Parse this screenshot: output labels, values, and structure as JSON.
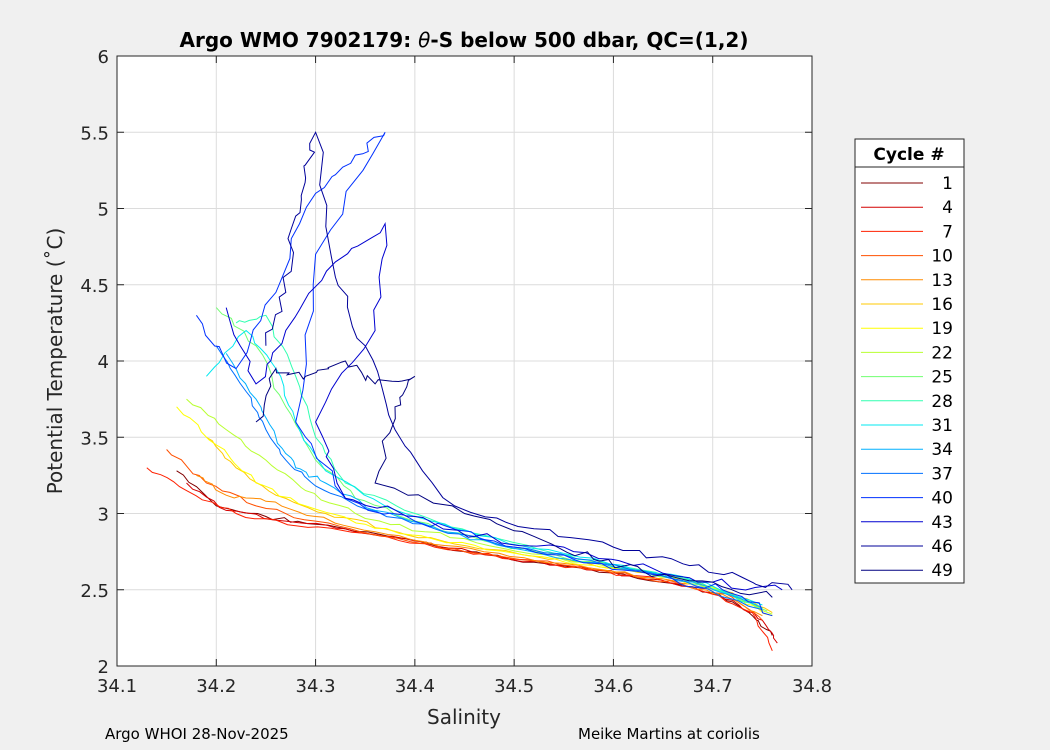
{
  "chart_data": {
    "type": "line",
    "title_prefix": "Argo WMO 7902179: ",
    "title_symbol": "θ",
    "title_suffix": "-S below 500 dbar,  QC=(1,2)",
    "xlabel": "Salinity",
    "ylabel": "Potential Temperature (˚C)",
    "xlim": [
      34.1,
      34.8
    ],
    "ylim": [
      2,
      6
    ],
    "xticks": [
      34.1,
      34.2,
      34.3,
      34.4,
      34.5,
      34.6,
      34.7,
      34.8
    ],
    "xtick_labels": [
      "34.1",
      "34.2",
      "34.3",
      "34.4",
      "34.5",
      "34.6",
      "34.7",
      "34.8"
    ],
    "yticks": [
      2,
      2.5,
      3,
      3.5,
      4,
      4.5,
      5,
      5.5,
      6
    ],
    "ytick_labels": [
      "2",
      "2.5",
      "3",
      "3.5",
      "4",
      "4.5",
      "5",
      "5.5",
      "6"
    ],
    "grid": true,
    "legend_title": "Cycle #",
    "legend_position": "right",
    "legend": [
      {
        "label": "1",
        "color": "#800000"
      },
      {
        "label": "4",
        "color": "#d40000"
      },
      {
        "label": "7",
        "color": "#ff2000"
      },
      {
        "label": "10",
        "color": "#ff5000"
      },
      {
        "label": "13",
        "color": "#ff8c00"
      },
      {
        "label": "16",
        "color": "#ffc800"
      },
      {
        "label": "19",
        "color": "#ffff00"
      },
      {
        "label": "22",
        "color": "#b8ff30"
      },
      {
        "label": "25",
        "color": "#70ff70"
      },
      {
        "label": "28",
        "color": "#30ffb0"
      },
      {
        "label": "31",
        "color": "#00e8f0"
      },
      {
        "label": "34",
        "color": "#00b0ff"
      },
      {
        "label": "37",
        "color": "#0070ff"
      },
      {
        "label": "40",
        "color": "#0030ff"
      },
      {
        "label": "43",
        "color": "#0000d0"
      },
      {
        "label": "46",
        "color": "#00009a"
      },
      {
        "label": "49",
        "color": "#000080"
      }
    ],
    "series": [
      {
        "name": "1",
        "color": "#800000",
        "x": [
          34.16,
          34.2,
          34.25,
          34.3,
          34.38,
          34.45,
          34.52,
          34.6,
          34.67,
          34.71,
          34.74,
          34.76
        ],
        "y": [
          3.28,
          3.05,
          2.98,
          2.93,
          2.84,
          2.75,
          2.68,
          2.61,
          2.53,
          2.45,
          2.33,
          2.2
        ]
      },
      {
        "name": "4",
        "color": "#d40000",
        "x": [
          34.17,
          34.21,
          34.27,
          34.33,
          34.4,
          34.47,
          34.55,
          34.62,
          34.68,
          34.72,
          34.75,
          34.765
        ],
        "y": [
          3.2,
          3.02,
          2.95,
          2.9,
          2.82,
          2.73,
          2.66,
          2.59,
          2.52,
          2.43,
          2.3,
          2.15
        ]
      },
      {
        "name": "7",
        "color": "#ff2000",
        "x": [
          34.13,
          34.17,
          34.22,
          34.28,
          34.35,
          34.42,
          34.5,
          34.58,
          34.65,
          34.7,
          34.74,
          34.76
        ],
        "y": [
          3.3,
          3.15,
          3.0,
          2.92,
          2.87,
          2.78,
          2.7,
          2.63,
          2.56,
          2.47,
          2.35,
          2.1
        ]
      },
      {
        "name": "10",
        "color": "#ff5000",
        "x": [
          34.15,
          34.19,
          34.24,
          34.3,
          34.37,
          34.44,
          34.52,
          34.6,
          34.67,
          34.72,
          34.75
        ],
        "y": [
          3.42,
          3.2,
          3.05,
          2.95,
          2.85,
          2.77,
          2.69,
          2.61,
          2.54,
          2.45,
          2.3
        ]
      },
      {
        "name": "13",
        "color": "#ff8c00",
        "x": [
          34.18,
          34.21,
          34.25,
          34.3,
          34.36,
          34.43,
          34.51,
          34.59,
          34.66,
          34.71,
          34.75
        ],
        "y": [
          3.25,
          3.12,
          3.08,
          2.98,
          2.88,
          2.79,
          2.71,
          2.63,
          2.56,
          2.47,
          2.33
        ]
      },
      {
        "name": "16",
        "color": "#ffc800",
        "x": [
          34.19,
          34.22,
          34.26,
          34.31,
          34.37,
          34.44,
          34.52,
          34.6,
          34.67,
          34.72,
          34.76
        ],
        "y": [
          3.5,
          3.3,
          3.12,
          3.0,
          2.9,
          2.8,
          2.72,
          2.64,
          2.57,
          2.48,
          2.35
        ]
      },
      {
        "name": "19",
        "color": "#ffff00",
        "x": [
          34.16,
          34.2,
          34.24,
          34.29,
          34.35,
          34.42,
          34.5,
          34.58,
          34.66,
          34.71,
          34.76
        ],
        "y": [
          3.7,
          3.45,
          3.2,
          3.05,
          2.93,
          2.83,
          2.74,
          2.66,
          2.58,
          2.49,
          2.33
        ]
      },
      {
        "name": "22",
        "color": "#b8ff30",
        "x": [
          34.17,
          34.21,
          34.25,
          34.29,
          34.34,
          34.41,
          34.49,
          34.57,
          34.65,
          34.71,
          34.76
        ],
        "y": [
          3.75,
          3.55,
          3.35,
          3.15,
          3.0,
          2.88,
          2.77,
          2.68,
          2.6,
          2.5,
          2.34
        ]
      },
      {
        "name": "25",
        "color": "#70ff70",
        "x": [
          34.2,
          34.24,
          34.27,
          34.3,
          34.34,
          34.4,
          34.47,
          34.55,
          34.63,
          34.7,
          34.755
        ],
        "y": [
          4.35,
          4.1,
          3.7,
          3.35,
          3.1,
          2.95,
          2.82,
          2.71,
          2.62,
          2.52,
          2.36
        ]
      },
      {
        "name": "28",
        "color": "#30ffb0",
        "x": [
          34.22,
          34.25,
          34.28,
          34.3,
          34.33,
          34.39,
          34.46,
          34.54,
          34.62,
          34.69,
          34.75
        ],
        "y": [
          4.25,
          4.3,
          3.9,
          3.5,
          3.2,
          3.02,
          2.87,
          2.74,
          2.64,
          2.54,
          2.38
        ]
      },
      {
        "name": "31",
        "color": "#00e8f0",
        "x": [
          34.19,
          34.23,
          34.26,
          34.28,
          34.31,
          34.37,
          34.44,
          34.52,
          34.61,
          34.68,
          34.75
        ],
        "y": [
          3.9,
          4.2,
          3.95,
          3.6,
          3.28,
          3.05,
          2.9,
          2.77,
          2.66,
          2.56,
          2.4
        ]
      },
      {
        "name": "34",
        "color": "#00b0ff",
        "x": [
          34.21,
          34.24,
          34.26,
          34.28,
          34.31,
          34.36,
          34.43,
          34.51,
          34.6,
          34.68,
          34.75
        ],
        "y": [
          4.05,
          3.75,
          3.5,
          3.3,
          3.2,
          3.02,
          2.88,
          2.76,
          2.65,
          2.55,
          2.38
        ]
      },
      {
        "name": "37",
        "color": "#0070ff",
        "x": [
          34.2,
          34.23,
          34.25,
          34.27,
          34.3,
          34.35,
          34.42,
          34.5,
          34.59,
          34.67,
          34.75
        ],
        "y": [
          4.1,
          3.8,
          3.55,
          3.35,
          3.18,
          3.03,
          2.9,
          2.78,
          2.67,
          2.56,
          2.37
        ]
      },
      {
        "name": "40",
        "color": "#0030ff",
        "x": [
          34.18,
          34.22,
          34.26,
          34.3,
          34.34,
          34.37,
          34.3,
          34.28,
          34.33,
          34.4,
          34.48,
          34.56,
          34.64,
          34.71,
          34.76
        ],
        "y": [
          4.3,
          3.95,
          4.45,
          5.1,
          5.35,
          5.5,
          4.7,
          3.6,
          3.1,
          2.95,
          2.82,
          2.7,
          2.6,
          2.5,
          2.33
        ]
      },
      {
        "name": "43",
        "color": "#0000d0",
        "x": [
          34.21,
          34.24,
          34.27,
          34.32,
          34.37,
          34.36,
          34.3,
          34.33,
          34.4,
          34.46,
          34.55,
          34.62,
          34.7,
          34.77
        ],
        "y": [
          4.35,
          3.85,
          4.2,
          4.65,
          4.9,
          4.2,
          3.6,
          3.1,
          2.98,
          2.85,
          2.78,
          2.66,
          2.55,
          2.5
        ]
      },
      {
        "name": "46",
        "color": "#00009a",
        "x": [
          34.25,
          34.27,
          34.28,
          34.29,
          34.3,
          34.32,
          34.35,
          34.38,
          34.44,
          34.52,
          34.6,
          34.67,
          34.73,
          34.78
        ],
        "y": [
          4.1,
          4.45,
          4.95,
          5.2,
          5.5,
          4.55,
          4.1,
          3.55,
          3.05,
          2.9,
          2.78,
          2.67,
          2.58,
          2.5
        ]
      },
      {
        "name": "49",
        "color": "#000080",
        "x": [
          34.24,
          34.26,
          34.29,
          34.33,
          34.36,
          34.4,
          34.38,
          34.36,
          34.45,
          34.52,
          34.58,
          34.63,
          34.7,
          34.76
        ],
        "y": [
          3.6,
          3.95,
          3.9,
          4.0,
          3.85,
          3.9,
          3.7,
          3.2,
          3.0,
          2.85,
          2.7,
          2.62,
          2.55,
          2.45
        ]
      }
    ]
  },
  "footer": {
    "left": "Argo WHOI 28-Nov-2025",
    "right": "Meike Martins at coriolis"
  }
}
